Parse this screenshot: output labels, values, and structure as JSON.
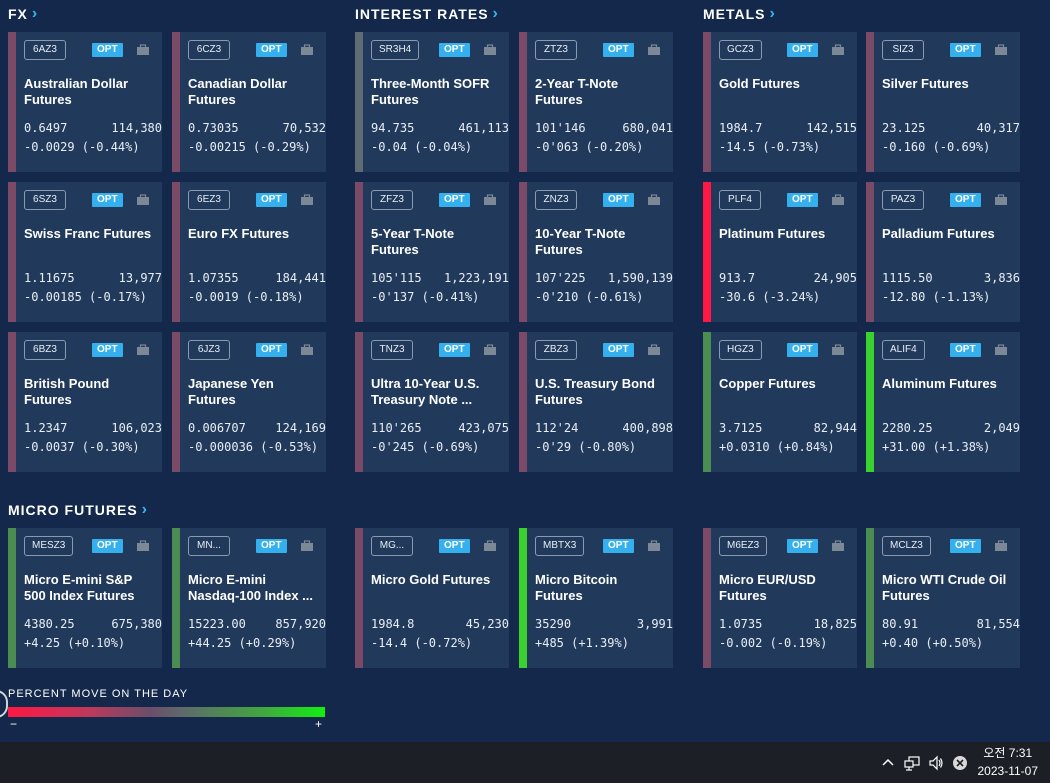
{
  "sections": {
    "fx": "FX",
    "interest_rates": "INTEREST RATES",
    "metals": "METALS",
    "micro": "MICRO FUTURES"
  },
  "opt_label": "OPT",
  "colors": {
    "background": "#13284a",
    "card_background": "#213a5b",
    "accent": "#35b0ef",
    "strong_negative": "#ff1745",
    "negative": "#7b4a66",
    "neutral": "#5f6b72",
    "positive": "#4a8c52",
    "strong_positive": "#3bd12f"
  },
  "cards": [
    {
      "symbol": "6AZ3",
      "name": "Australian Dollar\nFutures",
      "price": "0.6497",
      "volume": "114,380",
      "change": "-0.0029 (-0.44%)",
      "pct": -0.44
    },
    {
      "symbol": "6CZ3",
      "name": "Canadian Dollar\nFutures",
      "price": "0.73035",
      "volume": "70,532",
      "change": "-0.00215 (-0.29%)",
      "pct": -0.29
    },
    {
      "symbol": "SR3H4",
      "name": "Three-Month SOFR\nFutures",
      "price": "94.735",
      "volume": "461,113",
      "change": "-0.04 (-0.04%)",
      "pct": -0.04
    },
    {
      "symbol": "ZTZ3",
      "name": "2-Year T-Note\nFutures",
      "price": "101'146",
      "volume": "680,041",
      "change": "-0'063 (-0.20%)",
      "pct": -0.2
    },
    {
      "symbol": "GCZ3",
      "name": "Gold Futures",
      "price": "1984.7",
      "volume": "142,515",
      "change": "-14.5 (-0.73%)",
      "pct": -0.73
    },
    {
      "symbol": "SIZ3",
      "name": "Silver Futures",
      "price": "23.125",
      "volume": "40,317",
      "change": "-0.160 (-0.69%)",
      "pct": -0.69
    },
    {
      "symbol": "6SZ3",
      "name": "Swiss Franc Futures",
      "price": "1.11675",
      "volume": "13,977",
      "change": "-0.00185 (-0.17%)",
      "pct": -0.17
    },
    {
      "symbol": "6EZ3",
      "name": "Euro FX Futures",
      "price": "1.07355",
      "volume": "184,441",
      "change": "-0.0019 (-0.18%)",
      "pct": -0.18
    },
    {
      "symbol": "ZFZ3",
      "name": "5-Year T-Note\nFutures",
      "price": "105'115",
      "volume": "1,223,191",
      "change": "-0'137 (-0.41%)",
      "pct": -0.41
    },
    {
      "symbol": "ZNZ3",
      "name": "10-Year T-Note\nFutures",
      "price": "107'225",
      "volume": "1,590,139",
      "change": "-0'210 (-0.61%)",
      "pct": -0.61
    },
    {
      "symbol": "PLF4",
      "name": "Platinum Futures",
      "price": "913.7",
      "volume": "24,905",
      "change": "-30.6 (-3.24%)",
      "pct": -3.24
    },
    {
      "symbol": "PAZ3",
      "name": "Palladium Futures",
      "price": "1115.50",
      "volume": "3,836",
      "change": "-12.80 (-1.13%)",
      "pct": -1.13
    },
    {
      "symbol": "6BZ3",
      "name": "British Pound\nFutures",
      "price": "1.2347",
      "volume": "106,023",
      "change": "-0.0037 (-0.30%)",
      "pct": -0.3
    },
    {
      "symbol": "6JZ3",
      "name": "Japanese Yen\nFutures",
      "price": "0.006707",
      "volume": "124,169",
      "change": "-0.000036 (-0.53%)",
      "pct": -0.53
    },
    {
      "symbol": "TNZ3",
      "name": "Ultra 10-Year U.S.\nTreasury Note ...",
      "price": "110'265",
      "volume": "423,075",
      "change": "-0'245 (-0.69%)",
      "pct": -0.69
    },
    {
      "symbol": "ZBZ3",
      "name": "U.S. Treasury Bond\nFutures",
      "price": "112'24",
      "volume": "400,898",
      "change": "-0'29 (-0.80%)",
      "pct": -0.8
    },
    {
      "symbol": "HGZ3",
      "name": "Copper Futures",
      "price": "3.7125",
      "volume": "82,944",
      "change": "+0.0310 (+0.84%)",
      "pct": 0.84
    },
    {
      "symbol": "ALIF4",
      "name": "Aluminum Futures",
      "price": "2280.25",
      "volume": "2,049",
      "change": "+31.00 (+1.38%)",
      "pct": 1.38
    },
    {
      "symbol": "MESZ3",
      "name": "Micro E-mini S&P\n500 Index Futures",
      "price": "4380.25",
      "volume": "675,380",
      "change": "+4.25 (+0.10%)",
      "pct": 0.1
    },
    {
      "symbol": "MN...",
      "name": "Micro E-mini\nNasdaq-100 Index ...",
      "price": "15223.00",
      "volume": "857,920",
      "change": "+44.25 (+0.29%)",
      "pct": 0.29
    },
    {
      "symbol": "MG...",
      "name": "Micro Gold Futures",
      "price": "1984.8",
      "volume": "45,230",
      "change": "-14.4 (-0.72%)",
      "pct": -0.72
    },
    {
      "symbol": "MBTX3",
      "name": "Micro Bitcoin\nFutures",
      "price": "35290",
      "volume": "3,991",
      "change": "+485 (+1.39%)",
      "pct": 1.39
    },
    {
      "symbol": "M6EZ3",
      "name": "Micro EUR/USD\nFutures",
      "price": "1.0735",
      "volume": "18,825",
      "change": "-0.002 (-0.19%)",
      "pct": -0.19
    },
    {
      "symbol": "MCLZ3",
      "name": "Micro WTI Crude Oil\nFutures",
      "price": "80.91",
      "volume": "81,554",
      "change": "+0.40 (+0.50%)",
      "pct": 0.5
    }
  ],
  "legend": {
    "title": "PERCENT MOVE ON THE DAY",
    "min": "−",
    "max": "+"
  },
  "taskbar": {
    "icons": [
      "chevron-up-icon",
      "network-icon",
      "volume-icon",
      "close-circle-icon"
    ],
    "time": "오전 7:31",
    "date": "2023-11-07"
  }
}
